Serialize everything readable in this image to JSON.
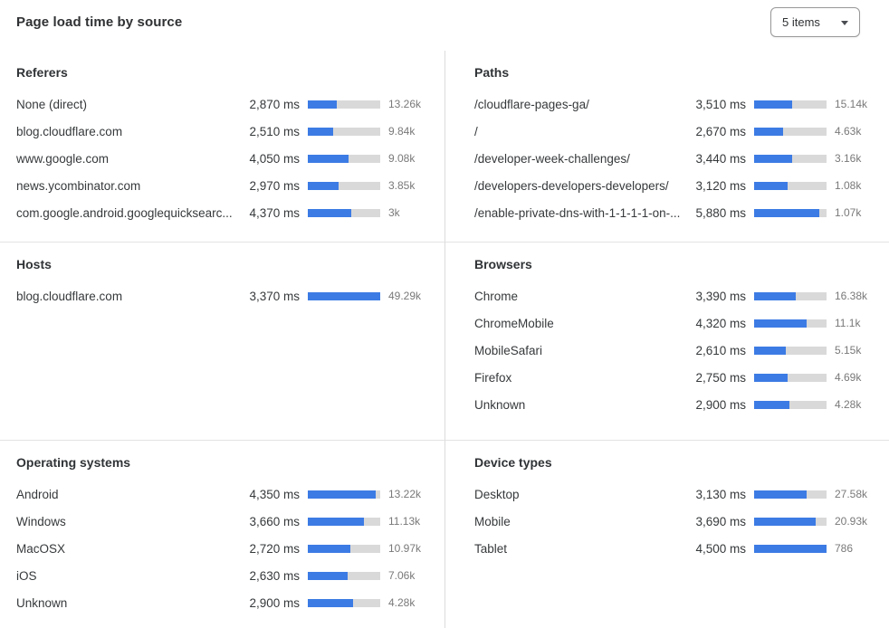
{
  "header": {
    "title": "Page load time by source",
    "items_dropdown": {
      "value": "5 items",
      "icon": "chevron-down"
    }
  },
  "colors": {
    "bar_fill": "#3c7be4",
    "bar_track": "#d9d9d9",
    "count_text": "#797979",
    "divider": "#dcdcdc"
  },
  "panels": [
    {
      "id": "referers",
      "title": "Referers",
      "rows": [
        {
          "label": "None (direct)",
          "time": "2,870 ms",
          "count": "13.26k",
          "bar_pct": 40
        },
        {
          "label": "blog.cloudflare.com",
          "time": "2,510 ms",
          "count": "9.84k",
          "bar_pct": 35
        },
        {
          "label": "www.google.com",
          "time": "4,050 ms",
          "count": "9.08k",
          "bar_pct": 56
        },
        {
          "label": "news.ycombinator.com",
          "time": "2,970 ms",
          "count": "3.85k",
          "bar_pct": 42
        },
        {
          "label": "com.google.android.googlequicksearc...",
          "time": "4,370 ms",
          "count": "3k",
          "bar_pct": 60
        }
      ]
    },
    {
      "id": "paths",
      "title": "Paths",
      "rows": [
        {
          "label": "/cloudflare-pages-ga/",
          "time": "3,510 ms",
          "count": "15.14k",
          "bar_pct": 53
        },
        {
          "label": "/",
          "time": "2,670 ms",
          "count": "4.63k",
          "bar_pct": 40
        },
        {
          "label": "/developer-week-challenges/",
          "time": "3,440 ms",
          "count": "3.16k",
          "bar_pct": 52
        },
        {
          "label": "/developers-developers-developers/",
          "time": "3,120 ms",
          "count": "1.08k",
          "bar_pct": 46
        },
        {
          "label": "/enable-private-dns-with-1-1-1-1-on-...",
          "time": "5,880 ms",
          "count": "1.07k",
          "bar_pct": 90
        }
      ]
    },
    {
      "id": "hosts",
      "title": "Hosts",
      "rows": [
        {
          "label": "blog.cloudflare.com",
          "time": "3,370 ms",
          "count": "49.29k",
          "bar_pct": 100
        }
      ]
    },
    {
      "id": "browsers",
      "title": "Browsers",
      "rows": [
        {
          "label": "Chrome",
          "time": "3,390 ms",
          "count": "16.38k",
          "bar_pct": 58
        },
        {
          "label": "ChromeMobile",
          "time": "4,320 ms",
          "count": "11.1k",
          "bar_pct": 73
        },
        {
          "label": "MobileSafari",
          "time": "2,610 ms",
          "count": "5.15k",
          "bar_pct": 44
        },
        {
          "label": "Firefox",
          "time": "2,750 ms",
          "count": "4.69k",
          "bar_pct": 46
        },
        {
          "label": "Unknown",
          "time": "2,900 ms",
          "count": "4.28k",
          "bar_pct": 49
        }
      ]
    },
    {
      "id": "operating-systems",
      "title": "Operating systems",
      "rows": [
        {
          "label": "Android",
          "time": "4,350 ms",
          "count": "13.22k",
          "bar_pct": 94
        },
        {
          "label": "Windows",
          "time": "3,660 ms",
          "count": "11.13k",
          "bar_pct": 78
        },
        {
          "label": "MacOSX",
          "time": "2,720 ms",
          "count": "10.97k",
          "bar_pct": 59
        },
        {
          "label": "iOS",
          "time": "2,630 ms",
          "count": "7.06k",
          "bar_pct": 55
        },
        {
          "label": "Unknown",
          "time": "2,900 ms",
          "count": "4.28k",
          "bar_pct": 62
        }
      ]
    },
    {
      "id": "device-types",
      "title": "Device types",
      "rows": [
        {
          "label": "Desktop",
          "time": "3,130 ms",
          "count": "27.58k",
          "bar_pct": 72
        },
        {
          "label": "Mobile",
          "time": "3,690 ms",
          "count": "20.93k",
          "bar_pct": 85
        },
        {
          "label": "Tablet",
          "time": "4,500 ms",
          "count": "786",
          "bar_pct": 100
        }
      ]
    }
  ]
}
